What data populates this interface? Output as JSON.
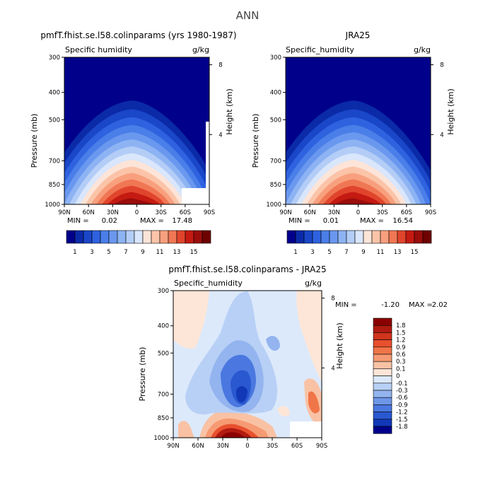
{
  "figure_title": "ANN",
  "chart_data": [
    {
      "type": "heatmap",
      "title": "pmfT.fhist.se.l58.colinparams (yrs 1980-1987)",
      "left_label": "Specific humidity",
      "units": "g/kg",
      "ylabel": "Pressure (mb)",
      "y2label": "Height (km)",
      "x_ticks": [
        "90N",
        "60N",
        "30N",
        "0",
        "30S",
        "60S",
        "90S"
      ],
      "y_ticks": [
        "300",
        "400",
        "500",
        "700",
        "850",
        "1000"
      ],
      "y2_ticks": [
        "8",
        "4"
      ],
      "min_label": "MIN =",
      "min_value": "0.02",
      "max_label": "MAX =",
      "max_value": "17.48",
      "ylim": [
        1000,
        300
      ],
      "xlim": [
        90,
        -90
      ],
      "peak": {
        "lat": 0,
        "pressure": 1000,
        "value": 17.48
      },
      "colorbar_labels": [
        "1",
        "3",
        "5",
        "7",
        "9",
        "11",
        "13",
        "15"
      ],
      "levels": [
        1,
        2,
        3,
        4,
        5,
        6,
        7,
        8,
        9,
        10,
        11,
        12,
        13,
        14,
        15,
        16
      ],
      "colors": [
        "#00008b",
        "#0a2aa8",
        "#1a46c8",
        "#2f62df",
        "#4a7ee8",
        "#6a98ef",
        "#8db3f3",
        "#b3cdf7",
        "#d9e6fb",
        "#fde4d8",
        "#fbc4a8",
        "#f8a07e",
        "#f07754",
        "#e0452c",
        "#c41a12",
        "#9a0d0b",
        "#6e0000"
      ]
    },
    {
      "type": "heatmap",
      "title": "JRA25",
      "left_label": "Specific_humidity",
      "units": "g/kg",
      "ylabel": "Pressure (mb)",
      "y2label": "Height (km)",
      "x_ticks": [
        "90N",
        "60N",
        "30N",
        "0",
        "30S",
        "60S",
        "90S"
      ],
      "y_ticks": [
        "300",
        "400",
        "500",
        "700",
        "850",
        "1000"
      ],
      "y2_ticks": [
        "8",
        "4"
      ],
      "min_label": "MIN =",
      "min_value": "0.01",
      "max_label": "MAX =",
      "max_value": "16.54",
      "ylim": [
        1000,
        300
      ],
      "xlim": [
        90,
        -90
      ],
      "peak": {
        "lat": 0,
        "pressure": 1000,
        "value": 16.54
      },
      "colorbar_labels": [
        "1",
        "3",
        "5",
        "7",
        "9",
        "11",
        "13",
        "15"
      ],
      "levels": [
        1,
        2,
        3,
        4,
        5,
        6,
        7,
        8,
        9,
        10,
        11,
        12,
        13,
        14,
        15,
        16
      ],
      "colors": [
        "#00008b",
        "#0a2aa8",
        "#1a46c8",
        "#2f62df",
        "#4a7ee8",
        "#6a98ef",
        "#8db3f3",
        "#b3cdf7",
        "#d9e6fb",
        "#fde4d8",
        "#fbc4a8",
        "#f8a07e",
        "#f07754",
        "#e0452c",
        "#c41a12",
        "#9a0d0b",
        "#6e0000"
      ]
    },
    {
      "type": "heatmap",
      "title": "pmfT.fhist.se.l58.colinparams - JRA25",
      "left_label": "Specific_humidity",
      "units": "g/kg",
      "ylabel": "Pressure (mb)",
      "y2label": "Height (km)",
      "x_ticks": [
        "90N",
        "60N",
        "30N",
        "0",
        "30S",
        "60S",
        "90S"
      ],
      "y_ticks": [
        "300",
        "400",
        "500",
        "700",
        "850",
        "1000"
      ],
      "y2_ticks": [
        "8",
        "4"
      ],
      "min_label": "MIN =",
      "min_value": "-1.20",
      "max_label": "MAX =",
      "max_value": "2.02",
      "ylim": [
        1000,
        300
      ],
      "xlim": [
        90,
        -90
      ],
      "colorbar_labels": [
        "1.8",
        "1.5",
        "1.2",
        "0.9",
        "0.6",
        "0.3",
        "0.1",
        "0",
        "-0.1",
        "-0.3",
        "-0.6",
        "-0.9",
        "-1.2",
        "-1.5",
        "-1.8"
      ],
      "colors": [
        "#8b0000",
        "#b01a10",
        "#d0341c",
        "#e8502e",
        "#f07548",
        "#f59a72",
        "#f9c2a4",
        "#fde6d8",
        "#dce9fb",
        "#b8d0f5",
        "#93b4ef",
        "#6e96e8",
        "#4a78e0",
        "#2a58d0",
        "#1238b8",
        "#00008b"
      ]
    }
  ]
}
